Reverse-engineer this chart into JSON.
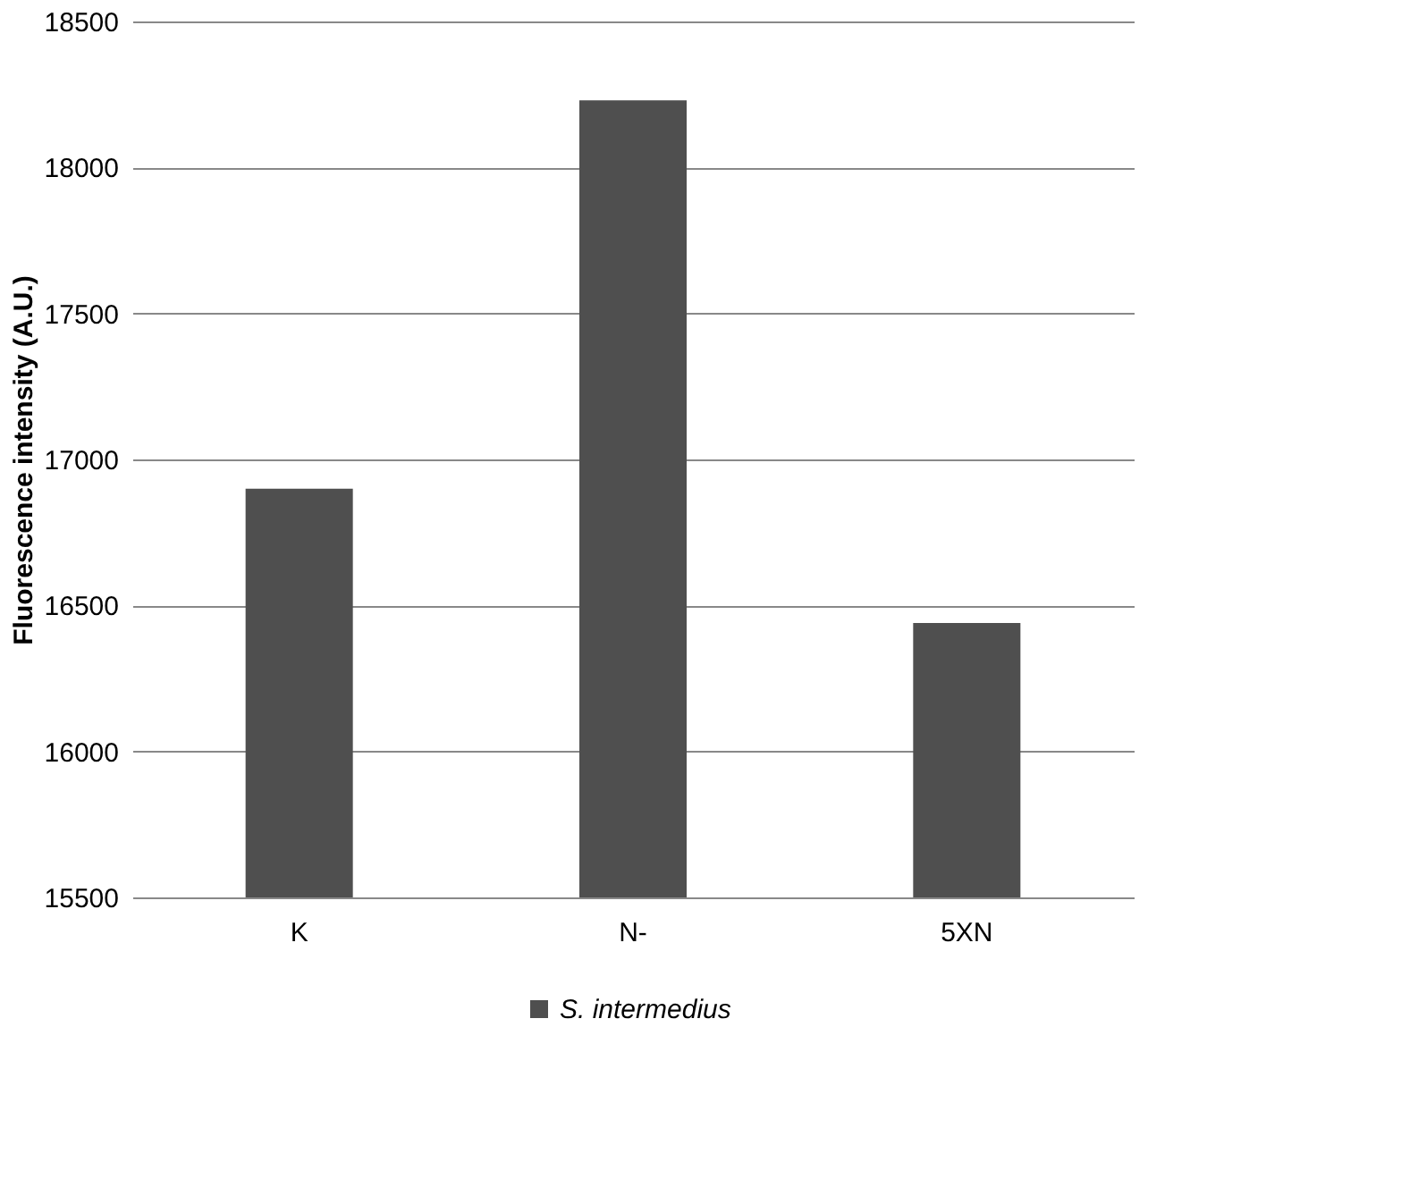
{
  "chart_data": {
    "type": "bar",
    "ylabel": "Fluorescence intensity (A.U.)",
    "categories": [
      "K",
      "N-",
      "5XN"
    ],
    "series": [
      {
        "name": "S. intermedius",
        "color": "#4f4f4f",
        "values": [
          16900,
          18230,
          16440
        ]
      }
    ],
    "ylim": [
      15500,
      18500
    ],
    "yticks": [
      15500,
      16000,
      16500,
      17000,
      17500,
      18000,
      18500
    ],
    "grid": "y",
    "legend": "bottom"
  }
}
